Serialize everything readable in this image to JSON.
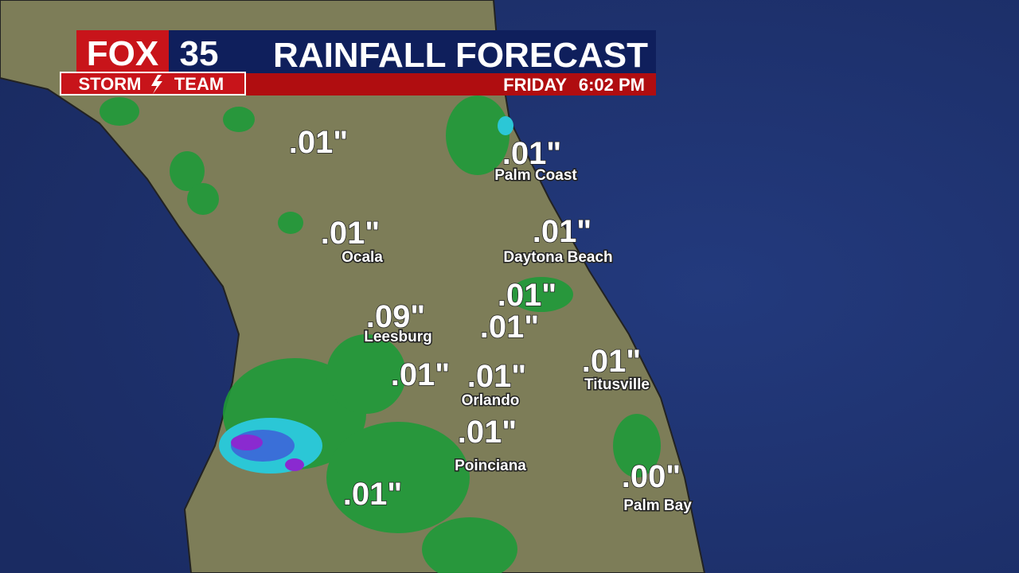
{
  "header": {
    "brand": "FOX",
    "channel": "35",
    "storm": "STORM",
    "team": "TEAM",
    "title": "RAINFALL FORECAST",
    "day": "FRIDAY",
    "time": "6:02 PM"
  },
  "labels": [
    {
      "amount": ".01\""
    },
    {
      "amount": ".01\"",
      "place": "Palm Coast"
    },
    {
      "amount": ".01\"",
      "place": "Ocala"
    },
    {
      "amount": ".01\"",
      "place": "Daytona Beach"
    },
    {
      "amount": ".01\""
    },
    {
      "amount": ".09\"",
      "place": "Leesburg"
    },
    {
      "amount": ".01\""
    },
    {
      "amount": ".01\"",
      "place": "Titusville"
    },
    {
      "amount": ".01\""
    },
    {
      "amount": ".01\"",
      "place": "Orlando"
    },
    {
      "amount": ".01\"",
      "place": "Poinciana"
    },
    {
      "amount": ".01\""
    },
    {
      "amount": ".00\"",
      "place": "Palm Bay"
    }
  ]
}
